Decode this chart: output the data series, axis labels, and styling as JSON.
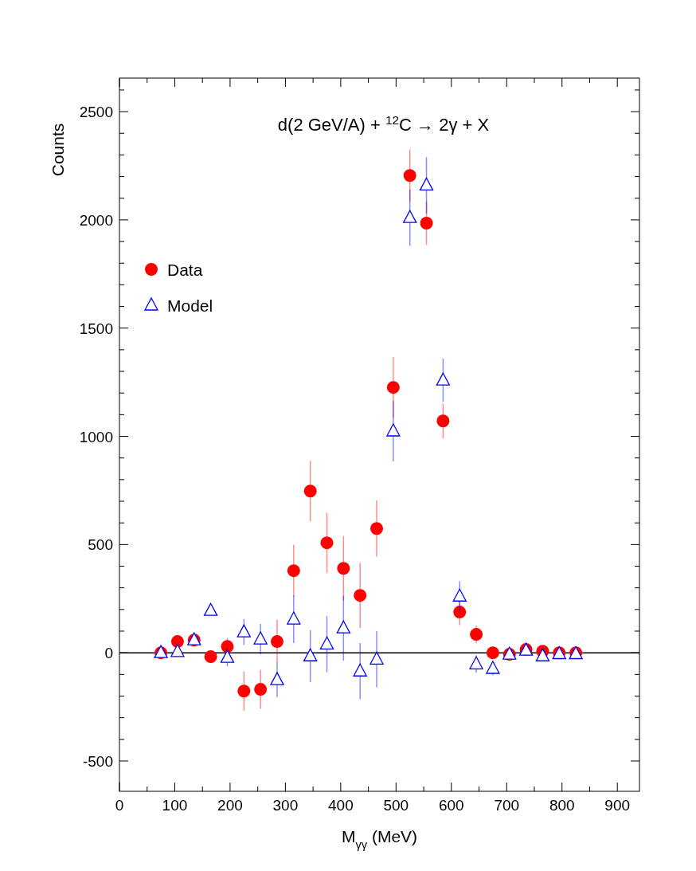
{
  "chart_data": {
    "type": "scatter",
    "title": "d(2 GeV/A) + $^{12}$C → 2γ + X",
    "xlabel": "M$_{γγ}$ (MeV)",
    "ylabel": "Counts",
    "x": [
      75,
      105,
      135,
      165,
      195,
      225,
      255,
      285,
      315,
      345,
      375,
      405,
      435,
      465,
      495,
      525,
      555,
      585,
      615,
      645,
      675,
      705,
      735,
      765,
      795,
      825
    ],
    "series": [
      {
        "name": "Data",
        "color": "#ff0000",
        "marker": "circle",
        "values": [
          0,
          52,
          59,
          -18,
          29,
          -177,
          -169,
          52,
          379,
          747,
          508,
          390,
          265,
          574,
          1226,
          2205,
          1985,
          1071,
          188,
          85,
          0,
          -7,
          15,
          7,
          0,
          0
        ],
        "errors": [
          20,
          20,
          20,
          30,
          40,
          90,
          90,
          100,
          120,
          140,
          140,
          150,
          150,
          130,
          140,
          120,
          100,
          80,
          60,
          40,
          20,
          20,
          20,
          20,
          20,
          20
        ]
      },
      {
        "name": "Model",
        "color": "#0000ff",
        "marker": "triangle",
        "values": [
          0,
          5,
          59,
          195,
          -22,
          96,
          63,
          -125,
          155,
          -15,
          40,
          114,
          -85,
          -30,
          1024,
          2010,
          2160,
          1259,
          261,
          -52,
          -73,
          -7,
          11,
          -15,
          -5,
          -5
        ],
        "errors": [
          20,
          20,
          20,
          20,
          40,
          60,
          70,
          80,
          110,
          120,
          130,
          150,
          130,
          130,
          140,
          130,
          130,
          100,
          70,
          40,
          30,
          20,
          20,
          20,
          20,
          20
        ]
      }
    ],
    "xlim": [
      0,
      940
    ],
    "ylim": [
      -640,
      2655
    ],
    "xticks": [
      0,
      {
        "value": 50,
        "label": null
      },
      100,
      {
        "value": 150,
        "label": null
      },
      200,
      {
        "value": 250,
        "label": null
      },
      300,
      {
        "value": 350,
        "label": null
      },
      400,
      {
        "value": 450,
        "label": null
      },
      500,
      {
        "value": 550,
        "label": null
      },
      600,
      {
        "value": 650,
        "label": null
      },
      700,
      {
        "value": 750,
        "label": null
      },
      800,
      {
        "value": 850,
        "label": null
      },
      900
    ],
    "yticks": [
      -500,
      {
        "value": -400,
        "label": null
      },
      {
        "value": -300,
        "label": null
      },
      {
        "value": -200,
        "label": null
      },
      {
        "value": -100,
        "label": null
      },
      0,
      {
        "value": 100,
        "label": null
      },
      {
        "value": 200,
        "label": null
      },
      {
        "value": 300,
        "label": null
      },
      {
        "value": 400,
        "label": null
      },
      500,
      {
        "value": 600,
        "label": null
      },
      {
        "value": 700,
        "label": null
      },
      {
        "value": 800,
        "label": null
      },
      {
        "value": 900,
        "label": null
      },
      1000,
      {
        "value": 1100,
        "label": null
      },
      {
        "value": 1200,
        "label": null
      },
      {
        "value": 1300,
        "label": null
      },
      {
        "value": 1400,
        "label": null
      },
      1500,
      {
        "value": 1600,
        "label": null
      },
      {
        "value": 1700,
        "label": null
      },
      {
        "value": 1800,
        "label": null
      },
      {
        "value": 1900,
        "label": null
      },
      2000,
      {
        "value": 2100,
        "label": null
      },
      {
        "value": 2200,
        "label": null
      },
      {
        "value": 2300,
        "label": null
      },
      {
        "value": 2400,
        "label": null
      },
      2500,
      {
        "value": 2600,
        "label": null
      }
    ],
    "ref_lines": [
      {
        "axis": "y",
        "value": 0,
        "label": null,
        "color": "#000000"
      }
    ],
    "grid": false,
    "legend": "top left"
  }
}
